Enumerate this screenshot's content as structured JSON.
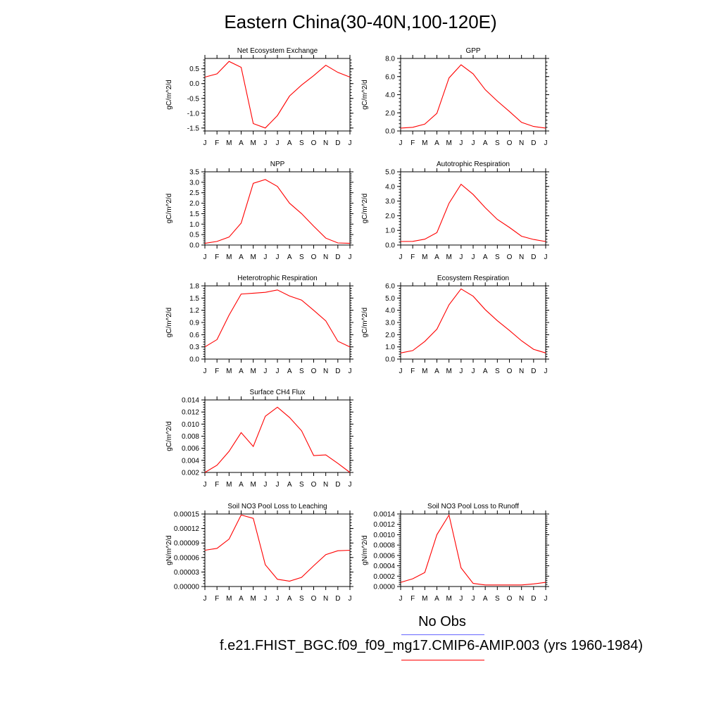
{
  "title": "Eastern China(30-40N,100-120E)",
  "colors": {
    "model": "#ff0000",
    "obs": "#6666ff",
    "axis": "#000000"
  },
  "legend": {
    "obs_label": "No Obs",
    "model_label": "f.e21.FHIST_BGC.f09_f09_mg17.CMIP6-AMIP.003 (yrs 1960-1984)"
  },
  "chart_data": [
    {
      "type": "line",
      "title": "Net Ecosystem Exchange",
      "ylabel": "gC/m^2/d",
      "x": [
        "J",
        "F",
        "M",
        "A",
        "M",
        "J",
        "J",
        "A",
        "S",
        "O",
        "N",
        "D",
        "J"
      ],
      "ylim": [
        -1.6,
        0.85
      ],
      "yticks": [
        0.5,
        0.0,
        -0.5,
        -1.0,
        -1.5
      ],
      "ytick_labels": [
        "0.5",
        "0.0",
        "-0.5",
        "-1.0",
        "-1.5"
      ],
      "series": [
        {
          "values": [
            0.22,
            0.33,
            0.75,
            0.55,
            -1.35,
            -1.5,
            -1.08,
            -0.42,
            -0.05,
            0.27,
            0.62,
            0.38,
            0.22
          ]
        }
      ]
    },
    {
      "type": "line",
      "title": "GPP",
      "ylabel": "gC/m^2/d",
      "x": [
        "J",
        "F",
        "M",
        "A",
        "M",
        "J",
        "J",
        "A",
        "S",
        "O",
        "N",
        "D",
        "J"
      ],
      "ylim": [
        0,
        8.0
      ],
      "yticks": [
        0,
        2,
        4,
        6,
        8
      ],
      "ytick_labels": [
        "0.0",
        "2.0",
        "4.0",
        "6.0",
        "8.0"
      ],
      "series": [
        {
          "values": [
            0.32,
            0.4,
            0.75,
            1.95,
            5.85,
            7.3,
            6.3,
            4.55,
            3.3,
            2.15,
            0.95,
            0.5,
            0.32
          ]
        }
      ]
    },
    {
      "type": "line",
      "title": "NPP",
      "ylabel": "gC/m^2/d",
      "x": [
        "J",
        "F",
        "M",
        "A",
        "M",
        "J",
        "J",
        "A",
        "S",
        "O",
        "N",
        "D",
        "J"
      ],
      "ylim": [
        0,
        3.5
      ],
      "yticks": [
        0,
        0.5,
        1.0,
        1.5,
        2.0,
        2.5,
        3.0,
        3.5
      ],
      "ytick_labels": [
        "0.0",
        "0.5",
        "1.0",
        "1.5",
        "2.0",
        "2.5",
        "3.0",
        "3.5"
      ],
      "series": [
        {
          "values": [
            0.08,
            0.17,
            0.38,
            1.05,
            2.95,
            3.13,
            2.8,
            2.0,
            1.5,
            0.9,
            0.33,
            0.1,
            0.08
          ]
        }
      ]
    },
    {
      "type": "line",
      "title": "Autotrophic Respiration",
      "ylabel": "gC/m^2/d",
      "x": [
        "J",
        "F",
        "M",
        "A",
        "M",
        "J",
        "J",
        "A",
        "S",
        "O",
        "N",
        "D",
        "J"
      ],
      "ylim": [
        0,
        5.0
      ],
      "yticks": [
        0,
        1,
        2,
        3,
        4,
        5
      ],
      "ytick_labels": [
        "0.0",
        "1.0",
        "2.0",
        "3.0",
        "4.0",
        "5.0"
      ],
      "series": [
        {
          "values": [
            0.24,
            0.25,
            0.4,
            0.85,
            2.85,
            4.15,
            3.45,
            2.55,
            1.75,
            1.2,
            0.6,
            0.38,
            0.24
          ]
        }
      ]
    },
    {
      "type": "line",
      "title": "Heterotrophic Respiration",
      "ylabel": "gC/m^2/d",
      "x": [
        "J",
        "F",
        "M",
        "A",
        "M",
        "J",
        "J",
        "A",
        "S",
        "O",
        "N",
        "D",
        "J"
      ],
      "ylim": [
        0,
        1.8
      ],
      "yticks": [
        0,
        0.3,
        0.6,
        0.9,
        1.2,
        1.5,
        1.8
      ],
      "ytick_labels": [
        "0.0",
        "0.3",
        "0.6",
        "0.9",
        "1.2",
        "1.5",
        "1.8"
      ],
      "series": [
        {
          "values": [
            0.3,
            0.48,
            1.08,
            1.6,
            1.62,
            1.64,
            1.7,
            1.55,
            1.45,
            1.2,
            0.94,
            0.44,
            0.3
          ]
        }
      ]
    },
    {
      "type": "line",
      "title": "Ecosystem Respiration",
      "ylabel": "gC/m^2/d",
      "x": [
        "J",
        "F",
        "M",
        "A",
        "M",
        "J",
        "J",
        "A",
        "S",
        "O",
        "N",
        "D",
        "J"
      ],
      "ylim": [
        0,
        6.0
      ],
      "yticks": [
        0,
        1,
        2,
        3,
        4,
        5,
        6
      ],
      "ytick_labels": [
        "0.0",
        "1.0",
        "2.0",
        "3.0",
        "4.0",
        "5.0",
        "6.0"
      ],
      "series": [
        {
          "values": [
            0.5,
            0.7,
            1.45,
            2.45,
            4.45,
            5.75,
            5.15,
            4.05,
            3.15,
            2.35,
            1.5,
            0.8,
            0.5
          ]
        }
      ]
    },
    {
      "type": "line",
      "title": "Surface CH4 Flux",
      "ylabel": "gC/m^2/d",
      "x": [
        "J",
        "F",
        "M",
        "A",
        "M",
        "J",
        "J",
        "A",
        "S",
        "O",
        "N",
        "D",
        "J"
      ],
      "ylim": [
        0.002,
        0.014
      ],
      "yticks": [
        0.002,
        0.004,
        0.006,
        0.008,
        0.01,
        0.012,
        0.014
      ],
      "ytick_labels": [
        "0.002",
        "0.004",
        "0.006",
        "0.008",
        "0.010",
        "0.012",
        "0.014"
      ],
      "series": [
        {
          "values": [
            0.002,
            0.0032,
            0.0055,
            0.0086,
            0.0063,
            0.0113,
            0.0128,
            0.0111,
            0.0089,
            0.0048,
            0.0049,
            0.0035,
            0.002
          ]
        }
      ]
    },
    {
      "type": "line",
      "title": "Soil NO3 Pool Loss to Leaching",
      "ylabel": "gN/m^2/d",
      "x": [
        "J",
        "F",
        "M",
        "A",
        "M",
        "J",
        "J",
        "A",
        "S",
        "O",
        "N",
        "D",
        "J"
      ],
      "ylim": [
        0,
        0.00015
      ],
      "yticks": [
        0,
        3e-05,
        6e-05,
        9e-05,
        0.00012,
        0.00015
      ],
      "ytick_labels": [
        "0.00000",
        "0.00003",
        "0.00006",
        "0.00009",
        "0.00012",
        "0.00015"
      ],
      "series": [
        {
          "values": [
            7.5e-05,
            7.9e-05,
            9.8e-05,
            0.000148,
            0.000141,
            4.5e-05,
            1.5e-05,
            1.1e-05,
            1.9e-05,
            4.3e-05,
            6.6e-05,
            7.4e-05,
            7.5e-05
          ]
        }
      ]
    },
    {
      "type": "line",
      "title": "Soil NO3 Pool Loss to Runoff",
      "ylabel": "gN/m^2/d",
      "x": [
        "J",
        "F",
        "M",
        "A",
        "M",
        "J",
        "J",
        "A",
        "S",
        "O",
        "N",
        "D",
        "J"
      ],
      "ylim": [
        0,
        0.0014
      ],
      "yticks": [
        0,
        0.0002,
        0.0004,
        0.0006,
        0.0008,
        0.001,
        0.0012,
        0.0014
      ],
      "ytick_labels": [
        "0.0000",
        "0.0002",
        "0.0004",
        "0.0006",
        "0.0008",
        "0.0010",
        "0.0012",
        "0.0014"
      ],
      "series": [
        {
          "values": [
            8e-05,
            0.00015,
            0.00027,
            0.001,
            0.00138,
            0.00036,
            6e-05,
            3e-05,
            3e-05,
            3e-05,
            3e-05,
            5e-05,
            8e-05
          ]
        }
      ]
    }
  ]
}
